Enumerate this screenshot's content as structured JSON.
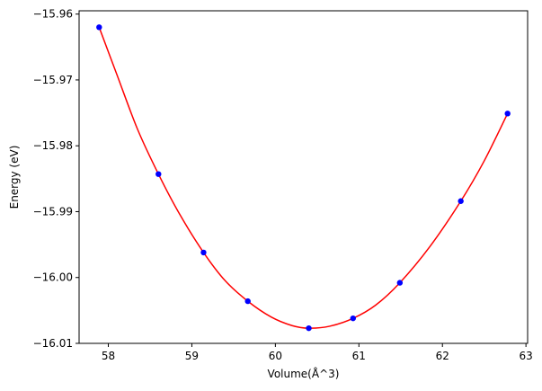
{
  "chart_data": {
    "type": "scatter",
    "xlabel": "Volume(Å^3)",
    "ylabel": "Energy (eV)",
    "xlim": [
      57.65,
      63.02
    ],
    "ylim": [
      -16.01,
      -15.9595
    ],
    "xticks": [
      {
        "value": 58,
        "label": "58"
      },
      {
        "value": 59,
        "label": "59"
      },
      {
        "value": 60,
        "label": "60"
      },
      {
        "value": 61,
        "label": "61"
      },
      {
        "value": 62,
        "label": "62"
      },
      {
        "value": 63,
        "label": "63"
      }
    ],
    "yticks": [
      {
        "value": -15.96,
        "label": "−15.96"
      },
      {
        "value": -15.97,
        "label": "−15.97"
      },
      {
        "value": -15.98,
        "label": "−15.98"
      },
      {
        "value": -15.99,
        "label": "−15.99"
      },
      {
        "value": -16.0,
        "label": "−16.00"
      },
      {
        "value": -16.01,
        "label": "−16.01"
      }
    ],
    "grid": false,
    "legend": "none",
    "series": [
      {
        "kind": "points",
        "color": "#0000ff",
        "marker": "circle",
        "x": [
          57.89,
          58.6,
          59.14,
          59.67,
          60.4,
          60.93,
          61.49,
          62.22,
          62.78
        ],
        "y": [
          -15.962,
          -15.9843,
          -15.9962,
          -16.0036,
          -16.0077,
          -16.0062,
          -16.0008,
          -15.9884,
          -15.9751
        ]
      },
      {
        "kind": "fit-curve",
        "color": "#ff0000",
        "x": [
          57.89,
          58.1,
          58.35,
          58.6,
          58.85,
          59.14,
          59.4,
          59.67,
          59.95,
          60.2,
          60.4,
          60.65,
          60.93,
          61.2,
          61.49,
          61.85,
          62.22,
          62.5,
          62.78
        ],
        "y": [
          -15.962,
          -15.9691,
          -15.9775,
          -15.9843,
          -15.9903,
          -15.9962,
          -16.0005,
          -16.0036,
          -16.006,
          -16.0073,
          -16.0077,
          -16.0074,
          -16.0062,
          -16.0042,
          -16.0008,
          -15.9953,
          -15.9884,
          -15.9823,
          -15.9751
        ]
      }
    ]
  }
}
